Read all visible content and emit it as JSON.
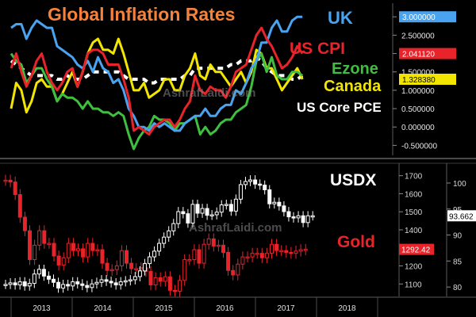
{
  "watermark": "AshrafLaidi.com",
  "chart_data": [
    {
      "type": "line",
      "title": "Global Inflation Rates",
      "title_color": "#f5823a",
      "x_label_years": [
        "2013",
        "2014",
        "2015",
        "2016",
        "2017",
        "2018"
      ],
      "ylim": [
        -0.75,
        3.35
      ],
      "y_ticks": [
        "3.000000",
        "2.500000",
        "2.000000",
        "1.500000",
        "1.000000",
        "0.500000",
        "0.000000",
        "-0.500000"
      ],
      "y_tick_values": [
        3.0,
        2.5,
        2.0,
        1.5,
        1.0,
        0.5,
        0.0,
        -0.5
      ],
      "x_start": 2013.0,
      "x_step_months": 1,
      "series": [
        {
          "name": "UK",
          "color": "#4aa3f0",
          "style": "solid",
          "last_label": "3.000000",
          "values": [
            2.7,
            2.8,
            2.8,
            2.4,
            2.7,
            2.9,
            2.8,
            2.7,
            2.7,
            2.2,
            2.1,
            2.0,
            1.9,
            1.7,
            1.6,
            1.8,
            1.5,
            1.9,
            1.6,
            1.5,
            1.2,
            1.3,
            1.0,
            0.5,
            0.3,
            0.0,
            0.0,
            -0.1,
            0.1,
            0.0,
            0.1,
            0.0,
            -0.1,
            -0.1,
            0.1,
            0.2,
            0.3,
            0.3,
            0.5,
            0.3,
            0.3,
            0.5,
            0.6,
            0.6,
            1.0,
            0.9,
            1.2,
            1.6,
            1.8,
            2.3,
            2.3,
            2.7,
            2.9,
            2.6,
            2.6,
            2.9,
            3.0,
            3.0
          ]
        },
        {
          "name": "US CPI",
          "color": "#e8232a",
          "style": "solid",
          "last_label": "2.041120",
          "values": [
            1.6,
            2.0,
            1.5,
            1.1,
            1.4,
            1.8,
            2.0,
            1.5,
            1.2,
            1.0,
            1.2,
            1.5,
            1.6,
            1.1,
            1.5,
            2.0,
            2.1,
            2.1,
            2.0,
            1.7,
            1.7,
            1.7,
            1.3,
            0.8,
            -0.1,
            0.0,
            -0.1,
            -0.2,
            0.0,
            0.1,
            0.2,
            0.2,
            0.0,
            0.2,
            0.5,
            0.7,
            1.4,
            1.0,
            0.9,
            1.1,
            1.0,
            1.0,
            0.8,
            1.1,
            1.5,
            1.6,
            1.7,
            2.1,
            2.5,
            2.7,
            2.4,
            2.2,
            1.9,
            1.6,
            1.7,
            1.9,
            2.2,
            2.0
          ]
        },
        {
          "name": "Ezone",
          "color": "#3fbf3f",
          "style": "solid",
          "last_label": "",
          "values": [
            2.0,
            1.8,
            1.7,
            1.2,
            1.4,
            1.6,
            1.6,
            1.3,
            1.1,
            0.7,
            0.9,
            0.8,
            0.8,
            0.7,
            0.5,
            0.7,
            0.5,
            0.5,
            0.4,
            0.4,
            0.3,
            0.4,
            0.3,
            -0.2,
            -0.6,
            -0.3,
            -0.1,
            0.0,
            0.3,
            0.2,
            0.2,
            0.1,
            -0.1,
            0.1,
            0.1,
            0.2,
            0.3,
            -0.2,
            0.0,
            -0.2,
            -0.1,
            0.1,
            0.2,
            0.2,
            0.4,
            0.5,
            0.6,
            1.1,
            1.8,
            2.0,
            1.5,
            1.9,
            1.4,
            1.3,
            1.3,
            1.5,
            1.5,
            1.4
          ]
        },
        {
          "name": "Canada",
          "color": "#f2e600",
          "style": "solid",
          "last_label": "1.328380",
          "values": [
            0.5,
            1.2,
            1.0,
            0.4,
            0.7,
            1.2,
            1.3,
            1.1,
            1.1,
            0.7,
            0.9,
            1.2,
            1.5,
            1.1,
            1.5,
            2.0,
            2.3,
            2.4,
            2.1,
            2.1,
            2.0,
            2.4,
            2.0,
            1.5,
            1.0,
            1.0,
            1.2,
            0.8,
            0.9,
            1.0,
            1.3,
            1.3,
            1.0,
            1.0,
            1.4,
            1.6,
            2.0,
            1.4,
            1.3,
            1.7,
            1.5,
            1.5,
            1.3,
            1.1,
            1.3,
            1.5,
            1.2,
            1.5,
            2.1,
            2.0,
            1.6,
            1.6,
            1.3,
            1.0,
            1.2,
            1.4,
            1.6,
            1.3
          ]
        },
        {
          "name": "US Core PCE",
          "color": "#ffffff",
          "style": "dashed",
          "last_label": "",
          "values": [
            1.8,
            1.7,
            1.6,
            1.5,
            1.4,
            1.4,
            1.4,
            1.4,
            1.4,
            1.3,
            1.3,
            1.4,
            1.3,
            1.3,
            1.3,
            1.4,
            1.5,
            1.5,
            1.5,
            1.5,
            1.5,
            1.5,
            1.4,
            1.3,
            1.3,
            1.3,
            1.3,
            1.2,
            1.2,
            1.3,
            1.3,
            1.3,
            1.3,
            1.3,
            1.4,
            1.4,
            1.6,
            1.6,
            1.6,
            1.6,
            1.6,
            1.6,
            1.6,
            1.7,
            1.7,
            1.8,
            1.8,
            1.8,
            1.9,
            1.8,
            1.6,
            1.5,
            1.4,
            1.4,
            1.4,
            1.3,
            1.3,
            1.4
          ]
        }
      ]
    },
    {
      "type": "candlestick",
      "x_label_years": [
        "2013",
        "2014",
        "2015",
        "2016",
        "2017",
        "2018"
      ],
      "x_start": 2013.0,
      "left_axis": {
        "ticks": [
          "1700",
          "1600",
          "1500",
          "1400",
          "1300",
          "1200",
          "1100"
        ],
        "tick_values": [
          1700,
          1600,
          1500,
          1400,
          1300,
          1200,
          1100
        ],
        "range": [
          1040,
          1760
        ]
      },
      "right_axis": {
        "ticks": [
          "100",
          "95",
          "90",
          "85",
          "80"
        ],
        "tick_values": [
          100,
          95,
          90,
          85,
          80
        ],
        "range": [
          78.5,
          103.5
        ]
      },
      "series": [
        {
          "name": "USDX",
          "color": "#ffffff",
          "axis": "right",
          "last_label": "93.662",
          "closes": [
            80.5,
            80.8,
            80.4,
            81.0,
            80.2,
            80.7,
            82.5,
            83.4,
            82.1,
            81.5,
            80.9,
            79.8,
            80.5,
            80.2,
            81.0,
            80.6,
            80.3,
            79.9,
            80.6,
            80.9,
            81.4,
            81.1,
            80.8,
            80.4,
            81.0,
            81.2,
            81.4,
            82.0,
            83.1,
            84.5,
            85.8,
            86.9,
            88.4,
            89.6,
            90.8,
            92.2,
            94.5,
            94.1,
            92.3,
            95.9,
            94.2,
            95.1,
            93.8,
            93.9,
            94.4,
            95.8,
            95.9,
            94.6,
            96.9,
            99.7,
            100.3,
            100.6,
            99.8,
            99.6,
            98.7,
            96.0,
            96.3,
            95.6,
            94.5,
            93.5,
            93.3,
            93.7,
            92.4,
            93.7,
            93.7
          ]
        },
        {
          "name": "Gold",
          "color": "#e8232a",
          "axis": "left",
          "last_label": "1292.42",
          "closes": [
            1675,
            1665,
            1595,
            1470,
            1395,
            1235,
            1315,
            1395,
            1325,
            1325,
            1255,
            1205,
            1245,
            1325,
            1285,
            1295,
            1250,
            1325,
            1285,
            1290,
            1215,
            1175,
            1180,
            1200,
            1285,
            1215,
            1185,
            1185,
            1190,
            1170,
            1095,
            1135,
            1115,
            1140,
            1065,
            1060,
            1120,
            1235,
            1235,
            1290,
            1215,
            1320,
            1350,
            1310,
            1315,
            1275,
            1175,
            1150,
            1210,
            1250,
            1250,
            1270,
            1270,
            1245,
            1270,
            1320,
            1285,
            1285,
            1275,
            1270,
            1282,
            1290,
            1292
          ]
        }
      ]
    }
  ],
  "legend": {
    "uk": "UK",
    "us_cpi": "US CPI",
    "ezone": "Ezone",
    "canada": "Canada",
    "us_core_pce": "US Core PCE",
    "usdx": "USDX",
    "gold": "Gold"
  },
  "colors": {
    "uk": "#4aa3f0",
    "us_cpi": "#e8232a",
    "ezone": "#3fbf3f",
    "canada": "#f2e600",
    "us_core_pce": "#ffffff",
    "gold": "#e8232a",
    "title": "#f5823a"
  }
}
